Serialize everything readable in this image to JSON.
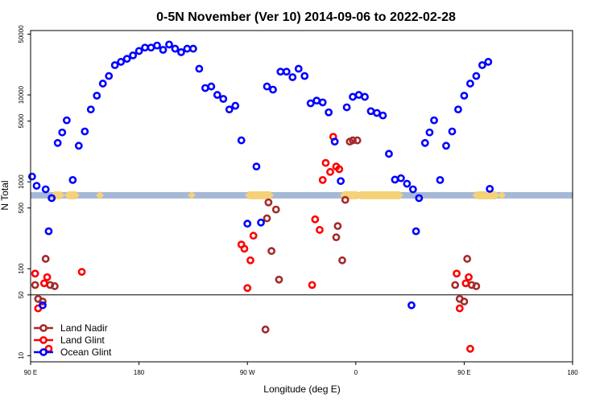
{
  "chart_data": {
    "type": "scatter",
    "title": "0-5N November (Ver 10)   2014-09-06 to 2022-02-28",
    "xlabel": "Longitude (deg E)",
    "ylabel": "N Total",
    "xlim": [
      90,
      270
    ],
    "ylim": [
      8.5,
      55000
    ],
    "y_scale": "log",
    "x_ticks": [
      {
        "value": 90,
        "label": "90 E"
      },
      {
        "value": 126,
        "label": "180"
      },
      {
        "value": 162,
        "label": "90 W"
      },
      {
        "value": 198,
        "label": "0"
      },
      {
        "value": 234,
        "label": "90 E"
      },
      {
        "value": 270,
        "label": "180"
      }
    ],
    "y_ticks": [
      {
        "value": 10,
        "label": "10"
      },
      {
        "value": 50,
        "label": "50"
      },
      {
        "value": 100,
        "label": "100"
      },
      {
        "value": 500,
        "label": "500"
      },
      {
        "value": 1000,
        "label": "1000"
      },
      {
        "value": 5000,
        "label": "5000"
      },
      {
        "value": 10000,
        "label": "10000"
      },
      {
        "value": 50000,
        "label": "50000"
      }
    ],
    "reference_lines": [
      50
    ],
    "legend_position": "bottom-left",
    "land_ocean_bar": {
      "y_value": 700,
      "ocean_color": "#a5b8d6",
      "land_color": "#f5d278",
      "land_segments": [
        [
          97.5,
          100.5
        ],
        [
          102,
          105.5
        ],
        [
          112.5,
          113.5
        ],
        [
          143,
          144
        ],
        [
          162,
          170
        ],
        [
          193.5,
          195
        ],
        [
          194.5,
          195
        ],
        [
          194,
          196
        ],
        [
          194.5,
          197
        ],
        [
          195,
          197.5
        ],
        [
          196,
          197.5
        ],
        [
          196.5,
          198.5
        ],
        [
          197.5,
          199
        ],
        [
          199,
          213
        ],
        [
          237.5,
          238
        ],
        [
          238,
          245
        ],
        [
          246,
          247
        ]
      ]
    },
    "series": [
      {
        "name": "Land Nadir",
        "color": "#a52a2a",
        "points": [
          [
            91.5,
            65
          ],
          [
            92.5,
            45
          ],
          [
            94,
            42
          ],
          [
            95,
            130
          ],
          [
            96.5,
            65
          ],
          [
            98,
            63
          ],
          [
            168,
            20
          ],
          [
            169,
            580
          ],
          [
            168.5,
            380
          ],
          [
            170,
            160
          ],
          [
            171.5,
            480
          ],
          [
            172.5,
            75
          ],
          [
            191.5,
            230
          ],
          [
            192,
            310
          ],
          [
            193.5,
            125
          ],
          [
            194.5,
            620
          ],
          [
            196,
            2900
          ],
          [
            197,
            3000
          ],
          [
            198.5,
            3000
          ],
          [
            231,
            65
          ],
          [
            232.5,
            45
          ],
          [
            234,
            42
          ],
          [
            235,
            130
          ],
          [
            236.5,
            65
          ],
          [
            238,
            63
          ]
        ]
      },
      {
        "name": "Land Glint",
        "color": "#ff0000",
        "points": [
          [
            91.5,
            88
          ],
          [
            92.5,
            35
          ],
          [
            94.5,
            68
          ],
          [
            95.5,
            80
          ],
          [
            96,
            12
          ],
          [
            107,
            92
          ],
          [
            160,
            190
          ],
          [
            161,
            170
          ],
          [
            162,
            60
          ],
          [
            163,
            125
          ],
          [
            164,
            240
          ],
          [
            183.5,
            65
          ],
          [
            184.5,
            370
          ],
          [
            186,
            280
          ],
          [
            187,
            1050
          ],
          [
            188,
            1650
          ],
          [
            189.5,
            1300
          ],
          [
            190.5,
            3300
          ],
          [
            191.5,
            1500
          ],
          [
            192.5,
            1400
          ],
          [
            231.5,
            88
          ],
          [
            232.5,
            35
          ],
          [
            234.5,
            68
          ],
          [
            235.5,
            80
          ],
          [
            236,
            12
          ]
        ]
      },
      {
        "name": "Ocean Glint",
        "color": "#0000ff",
        "points": [
          [
            90.5,
            1150
          ],
          [
            92,
            900
          ],
          [
            94,
            38
          ],
          [
            95,
            820
          ],
          [
            96,
            270
          ],
          [
            97,
            650
          ],
          [
            99,
            2800
          ],
          [
            100.5,
            3700
          ],
          [
            102,
            5100
          ],
          [
            104,
            1050
          ],
          [
            106,
            2600
          ],
          [
            108,
            3800
          ],
          [
            110,
            6800
          ],
          [
            112,
            9800
          ],
          [
            114,
            13500
          ],
          [
            116,
            16500
          ],
          [
            118,
            22000
          ],
          [
            120,
            24000
          ],
          [
            122,
            26000
          ],
          [
            124,
            28500
          ],
          [
            126,
            32000
          ],
          [
            128,
            35000
          ],
          [
            130,
            35000
          ],
          [
            132,
            37000
          ],
          [
            134,
            33000
          ],
          [
            136,
            38000
          ],
          [
            138,
            34000
          ],
          [
            140,
            31000
          ],
          [
            142,
            34000
          ],
          [
            144,
            34000
          ],
          [
            146,
            20000
          ],
          [
            148,
            12000
          ],
          [
            150,
            12500
          ],
          [
            152,
            10000
          ],
          [
            154,
            9000
          ],
          [
            156,
            6800
          ],
          [
            158,
            7500
          ],
          [
            160,
            3000
          ],
          [
            162,
            330
          ],
          [
            165,
            1500
          ],
          [
            166.5,
            340
          ],
          [
            168.5,
            12500
          ],
          [
            170.5,
            11500
          ],
          [
            173,
            18500
          ],
          [
            175,
            18500
          ],
          [
            177,
            16000
          ],
          [
            179,
            20000
          ],
          [
            181,
            16500
          ],
          [
            183,
            8000
          ],
          [
            185,
            8600
          ],
          [
            187,
            8200
          ],
          [
            189,
            6300
          ],
          [
            191,
            2900
          ],
          [
            193,
            1020
          ],
          [
            195,
            7200
          ],
          [
            197,
            9500
          ],
          [
            199,
            10000
          ],
          [
            201,
            9500
          ],
          [
            203,
            6500
          ],
          [
            205,
            6200
          ],
          [
            207,
            5800
          ],
          [
            209,
            2100
          ],
          [
            211,
            1060
          ],
          [
            213,
            1100
          ],
          [
            215,
            950
          ],
          [
            216.5,
            38
          ],
          [
            217,
            820
          ],
          [
            218,
            270
          ],
          [
            219,
            650
          ],
          [
            221,
            2800
          ],
          [
            222.5,
            3700
          ],
          [
            224,
            5100
          ],
          [
            226,
            1050
          ],
          [
            228,
            2600
          ],
          [
            230,
            3800
          ],
          [
            232,
            6800
          ],
          [
            234,
            9800
          ],
          [
            236,
            13500
          ],
          [
            238,
            16500
          ],
          [
            240,
            22000
          ],
          [
            242,
            24000
          ],
          [
            242.5,
            830
          ]
        ]
      }
    ]
  }
}
